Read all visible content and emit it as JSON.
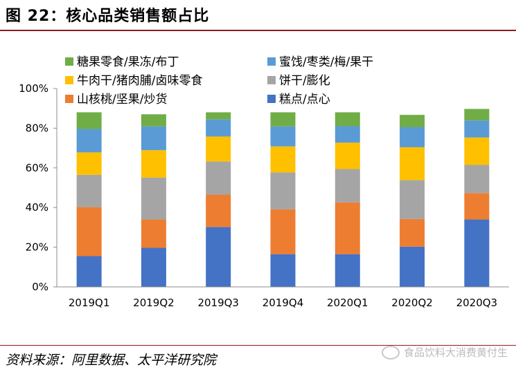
{
  "header": {
    "title": "图 22：核心品类销售额占比"
  },
  "footer": {
    "source": "资料来源：阿里数据、太平洋研究院",
    "watermark": "食品饮料大消费黄付生"
  },
  "chart_data": {
    "type": "bar",
    "stacked": true,
    "title": "",
    "xlabel": "",
    "ylabel": "",
    "ylim": [
      0,
      100
    ],
    "y_ticks": [
      "0%",
      "20%",
      "40%",
      "60%",
      "80%",
      "100%"
    ],
    "categories": [
      "2019Q1",
      "2019Q2",
      "2019Q3",
      "2019Q4",
      "2020Q1",
      "2020Q2",
      "2020Q3"
    ],
    "series": [
      {
        "name": "糕点/点心",
        "color": "#4472c4",
        "values": [
          15.5,
          19.7,
          30.2,
          16.5,
          16.5,
          20.3,
          34.0
        ]
      },
      {
        "name": "山核桃/坚果/炒货",
        "color": "#ed7d31",
        "values": [
          24.7,
          14.3,
          16.3,
          22.6,
          26.1,
          13.9,
          13.3
        ]
      },
      {
        "name": "饼干/膨化",
        "color": "#a5a5a5",
        "values": [
          16.3,
          21.1,
          16.7,
          18.6,
          16.8,
          19.6,
          14.2
        ]
      },
      {
        "name": "牛肉干/猪肉脯/卤味零食",
        "color": "#ffc000",
        "values": [
          11.3,
          13.8,
          12.6,
          13.1,
          13.3,
          16.6,
          13.8
        ]
      },
      {
        "name": "蜜饯/枣类/梅/果干",
        "color": "#5b9bd5",
        "values": [
          11.8,
          12.0,
          8.6,
          10.1,
          8.3,
          10.1,
          8.6
        ]
      },
      {
        "name": "糖果零食/果冻/布丁",
        "color": "#70ad47",
        "values": [
          8.4,
          6.1,
          3.6,
          7.1,
          7.0,
          6.2,
          5.8
        ]
      }
    ],
    "legend_placement": "top",
    "grid": false
  }
}
